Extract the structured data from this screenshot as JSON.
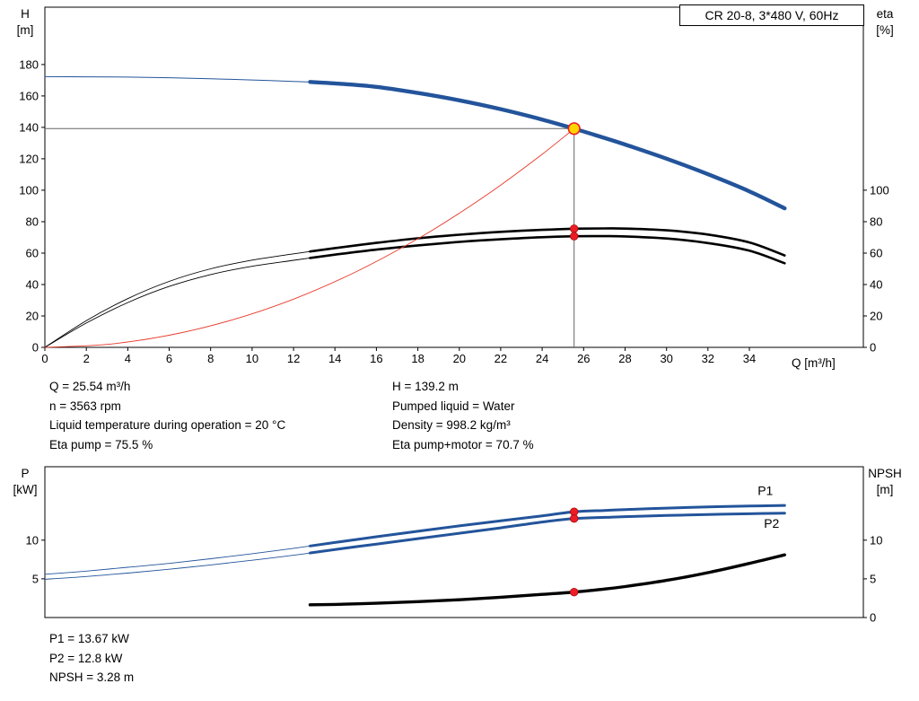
{
  "title_box": {
    "text": "CR 20-8, 3*480 V, 60Hz"
  },
  "top_annotations": {
    "left": [
      "Q = 25.54 m³/h",
      "n = 3563 rpm",
      "Liquid temperature during operation = 20 °C",
      "Eta pump = 75.5 %"
    ],
    "right": [
      "H = 139.2 m",
      "Pumped liquid = Water",
      "Density = 998.2 kg/m³",
      "Eta pump+motor = 70.7 %"
    ]
  },
  "bottom_annotations": [
    "P1 = 13.67 kW",
    "P2 = 12.8 kW",
    "NPSH = 3.28 m"
  ],
  "colors": {
    "curve_blue": "#23549b",
    "curve_black": "#000000",
    "curve_red": "#e8392b",
    "marker_red": "#ee1c25",
    "marker_red_edge": "#a01010",
    "marker_yellow": "#ffd400",
    "guide": "#666666",
    "axis": "#000000"
  },
  "chart_data": [
    {
      "type": "line",
      "name": "head-efficiency-chart",
      "x_axis": {
        "title": "Q [m³/h]",
        "min": 0,
        "max": 39.5,
        "ticks": [
          0,
          2,
          4,
          6,
          8,
          10,
          12,
          14,
          16,
          18,
          20,
          22,
          24,
          26,
          28,
          30,
          32,
          34
        ]
      },
      "y_left": {
        "title_lines": [
          "H",
          "[m]"
        ],
        "min": 0,
        "max": 216.5,
        "ticks": [
          0,
          20,
          40,
          60,
          80,
          100,
          120,
          140,
          160,
          180
        ]
      },
      "y_right": {
        "title_lines": [
          "eta",
          "[%]"
        ],
        "ticks": [
          0,
          20,
          40,
          60,
          80,
          100
        ]
      },
      "guides": {
        "q": 25.54,
        "h": 139.2
      },
      "series": [
        {
          "name": "eta-pump-curve",
          "color": "curve_black",
          "split": 12.8,
          "thin": 0.9,
          "thick": 2.6,
          "points": [
            [
              0,
              0
            ],
            [
              2,
              17
            ],
            [
              4,
              31
            ],
            [
              6,
              42
            ],
            [
              8,
              50
            ],
            [
              10,
              55.5
            ],
            [
              12,
              59.5
            ],
            [
              12.8,
              61
            ],
            [
              14,
              63.2
            ],
            [
              16,
              66.5
            ],
            [
              18,
              69.4
            ],
            [
              20,
              71.7
            ],
            [
              22,
              73.5
            ],
            [
              24,
              74.8
            ],
            [
              25.54,
              75.5
            ],
            [
              27,
              75.7
            ],
            [
              28,
              75.6
            ],
            [
              30,
              74.5
            ],
            [
              32,
              71.8
            ],
            [
              34,
              66.8
            ],
            [
              35.7,
              58.5
            ]
          ]
        },
        {
          "name": "eta-pump-motor-curve",
          "color": "curve_black",
          "split": 12.8,
          "thin": 0.9,
          "thick": 2.6,
          "points": [
            [
              0,
              0
            ],
            [
              2,
              15.5
            ],
            [
              4,
              28.5
            ],
            [
              6,
              38.8
            ],
            [
              8,
              46.3
            ],
            [
              10,
              51.6
            ],
            [
              12,
              55.4
            ],
            [
              12.8,
              56.9
            ],
            [
              14,
              59
            ],
            [
              16,
              62.2
            ],
            [
              18,
              64.9
            ],
            [
              20,
              67.1
            ],
            [
              22,
              68.8
            ],
            [
              24,
              70.1
            ],
            [
              25.54,
              70.7
            ],
            [
              27,
              70.8
            ],
            [
              28,
              70.6
            ],
            [
              30,
              69.3
            ],
            [
              32,
              66.4
            ],
            [
              34,
              61.5
            ],
            [
              35.7,
              53.5
            ]
          ]
        },
        {
          "name": "system-curve",
          "color": "curve_red",
          "width": 0.9,
          "points": [
            [
              0,
              0
            ],
            [
              3,
              1.9
            ],
            [
              6,
              7.7
            ],
            [
              9,
              17.3
            ],
            [
              12,
              30.7
            ],
            [
              15,
              48
            ],
            [
              18,
              69.1
            ],
            [
              20,
              85.4
            ],
            [
              22,
              103.3
            ],
            [
              24,
              122.9
            ],
            [
              25.54,
              139.2
            ]
          ]
        },
        {
          "name": "head-curve",
          "color": "curve_blue",
          "split": 12.8,
          "thin": 1,
          "thick": 4.4,
          "points": [
            [
              0,
              172.3
            ],
            [
              2,
              172.2
            ],
            [
              4,
              172
            ],
            [
              6,
              171.6
            ],
            [
              8,
              171
            ],
            [
              10,
              170.2
            ],
            [
              12,
              169.2
            ],
            [
              12.8,
              168.9
            ],
            [
              14,
              168
            ],
            [
              16,
              165.8
            ],
            [
              18,
              161.9
            ],
            [
              20,
              157.2
            ],
            [
              22,
              151.6
            ],
            [
              24,
              145
            ],
            [
              25.54,
              139.2
            ],
            [
              27,
              133.3
            ],
            [
              28,
              129.1
            ],
            [
              30,
              120.1
            ],
            [
              32,
              110.2
            ],
            [
              34,
              99.3
            ],
            [
              35.7,
              88.5
            ]
          ]
        }
      ],
      "markers": [
        {
          "kind": "dot",
          "q": 25.54,
          "v": 75.5
        },
        {
          "kind": "dot",
          "q": 25.54,
          "v": 70.7
        },
        {
          "kind": "duty",
          "q": 25.54,
          "v": 139.2
        }
      ]
    },
    {
      "type": "line",
      "name": "power-npsh-chart",
      "x_axis": {
        "title": "",
        "min": 0,
        "max": 39.5,
        "ticks": []
      },
      "y_left": {
        "title_lines": [
          "P",
          "[kW]"
        ],
        "min": 0,
        "max": 19.5,
        "ticks": [
          5,
          10
        ]
      },
      "y_right": {
        "title_lines": [
          "NPSH",
          "[m]"
        ],
        "ticks": [
          0,
          5,
          10
        ]
      },
      "series": [
        {
          "name": "npsh-curve",
          "color": "curve_black",
          "width": 3.4,
          "points": [
            [
              12.8,
              1.65
            ],
            [
              14,
              1.7
            ],
            [
              16,
              1.85
            ],
            [
              18,
              2.05
            ],
            [
              20,
              2.3
            ],
            [
              22,
              2.62
            ],
            [
              24,
              3
            ],
            [
              25.54,
              3.28
            ],
            [
              27,
              3.68
            ],
            [
              28,
              4
            ],
            [
              30,
              4.8
            ],
            [
              32,
              5.8
            ],
            [
              34,
              7
            ],
            [
              35.7,
              8.1
            ]
          ]
        },
        {
          "name": "p2-curve",
          "color": "curve_blue",
          "split": 12.8,
          "thin": 0.9,
          "thick": 3,
          "label": {
            "text": "P2",
            "q": 34.7,
            "v": 12.2
          },
          "points": [
            [
              0,
              4.95
            ],
            [
              2,
              5.3
            ],
            [
              4,
              5.75
            ],
            [
              6,
              6.25
            ],
            [
              8,
              6.8
            ],
            [
              10,
              7.4
            ],
            [
              12,
              8.05
            ],
            [
              12.8,
              8.35
            ],
            [
              14,
              8.8
            ],
            [
              16,
              9.5
            ],
            [
              18,
              10.2
            ],
            [
              20,
              10.9
            ],
            [
              22,
              11.6
            ],
            [
              24,
              12.35
            ],
            [
              25.54,
              12.8
            ],
            [
              27,
              12.95
            ],
            [
              28,
              13.05
            ],
            [
              30,
              13.2
            ],
            [
              32,
              13.32
            ],
            [
              34,
              13.42
            ],
            [
              35.7,
              13.5
            ]
          ]
        },
        {
          "name": "p1-curve",
          "color": "curve_blue",
          "split": 12.8,
          "thin": 0.9,
          "thick": 3,
          "label": {
            "text": "P1",
            "q": 34.4,
            "v": 16.4
          },
          "points": [
            [
              0,
              5.6
            ],
            [
              2,
              6
            ],
            [
              4,
              6.5
            ],
            [
              6,
              7
            ],
            [
              8,
              7.6
            ],
            [
              10,
              8.25
            ],
            [
              12,
              8.95
            ],
            [
              12.8,
              9.25
            ],
            [
              14,
              9.7
            ],
            [
              16,
              10.45
            ],
            [
              18,
              11.15
            ],
            [
              20,
              11.85
            ],
            [
              22,
              12.5
            ],
            [
              24,
              13.15
            ],
            [
              25.54,
              13.67
            ],
            [
              27,
              13.85
            ],
            [
              28,
              13.95
            ],
            [
              30,
              14.15
            ],
            [
              32,
              14.3
            ],
            [
              34,
              14.42
            ],
            [
              35.7,
              14.5
            ]
          ]
        }
      ],
      "markers": [
        {
          "kind": "dot",
          "q": 25.54,
          "v": 13.67
        },
        {
          "kind": "dot",
          "q": 25.54,
          "v": 12.8
        },
        {
          "kind": "dot",
          "q": 25.54,
          "v": 3.28
        }
      ]
    }
  ]
}
